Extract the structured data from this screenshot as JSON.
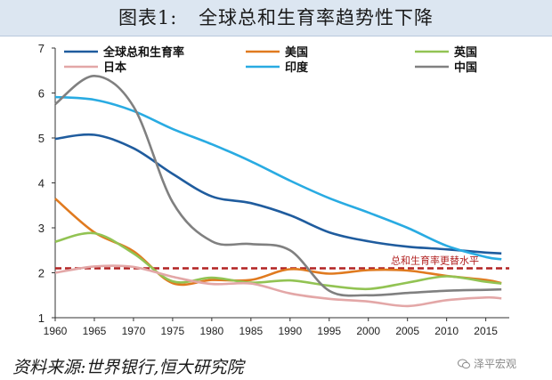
{
  "title": {
    "label": "图表1:",
    "text": "全球总和生育率趋势性下降"
  },
  "source": "资料来源:世界银行,恒大研究院",
  "watermark": {
    "text": "泽平宏观",
    "icon": "wechat-icon"
  },
  "chart_data": {
    "type": "line",
    "x": [
      1960,
      1965,
      1970,
      1975,
      1980,
      1985,
      1990,
      1995,
      2000,
      2005,
      2010,
      2015,
      2017
    ],
    "xticks": [
      1960,
      1965,
      1970,
      1975,
      1980,
      1985,
      1990,
      1995,
      2000,
      2005,
      2010,
      2015
    ],
    "xlim": [
      1960,
      2018
    ],
    "ylim": [
      1,
      7
    ],
    "yticks": [
      1,
      2,
      3,
      4,
      5,
      6,
      7
    ],
    "series": [
      {
        "name": "全球总和生育率",
        "color": "#1f5c9e",
        "values": [
          4.98,
          5.07,
          4.77,
          4.2,
          3.7,
          3.55,
          3.28,
          2.9,
          2.7,
          2.58,
          2.52,
          2.45,
          2.43
        ]
      },
      {
        "name": "美国",
        "color": "#e07a1f",
        "values": [
          3.65,
          2.9,
          2.48,
          1.77,
          1.84,
          1.84,
          2.08,
          1.98,
          2.06,
          2.05,
          1.93,
          1.84,
          1.77
        ]
      },
      {
        "name": "英国",
        "color": "#92c353",
        "values": [
          2.69,
          2.88,
          2.43,
          1.81,
          1.89,
          1.78,
          1.83,
          1.71,
          1.64,
          1.78,
          1.92,
          1.8,
          1.76
        ]
      },
      {
        "name": "印度",
        "color": "#29abe2",
        "values": [
          5.91,
          5.85,
          5.6,
          5.2,
          4.86,
          4.48,
          4.05,
          3.66,
          3.34,
          3.0,
          2.6,
          2.35,
          2.3
        ]
      },
      {
        "name": "日本",
        "color": "#e3a7a7",
        "values": [
          2.0,
          2.14,
          2.13,
          1.91,
          1.75,
          1.76,
          1.54,
          1.42,
          1.36,
          1.26,
          1.39,
          1.45,
          1.43
        ]
      },
      {
        "name": "中国",
        "color": "#808080",
        "values": [
          5.75,
          6.38,
          5.7,
          3.57,
          2.7,
          2.64,
          2.5,
          1.6,
          1.5,
          1.55,
          1.6,
          1.62,
          1.63
        ]
      }
    ],
    "reference_line": {
      "value": 2.1,
      "label": "总和生育率更替水平",
      "color": "#b22222"
    }
  }
}
